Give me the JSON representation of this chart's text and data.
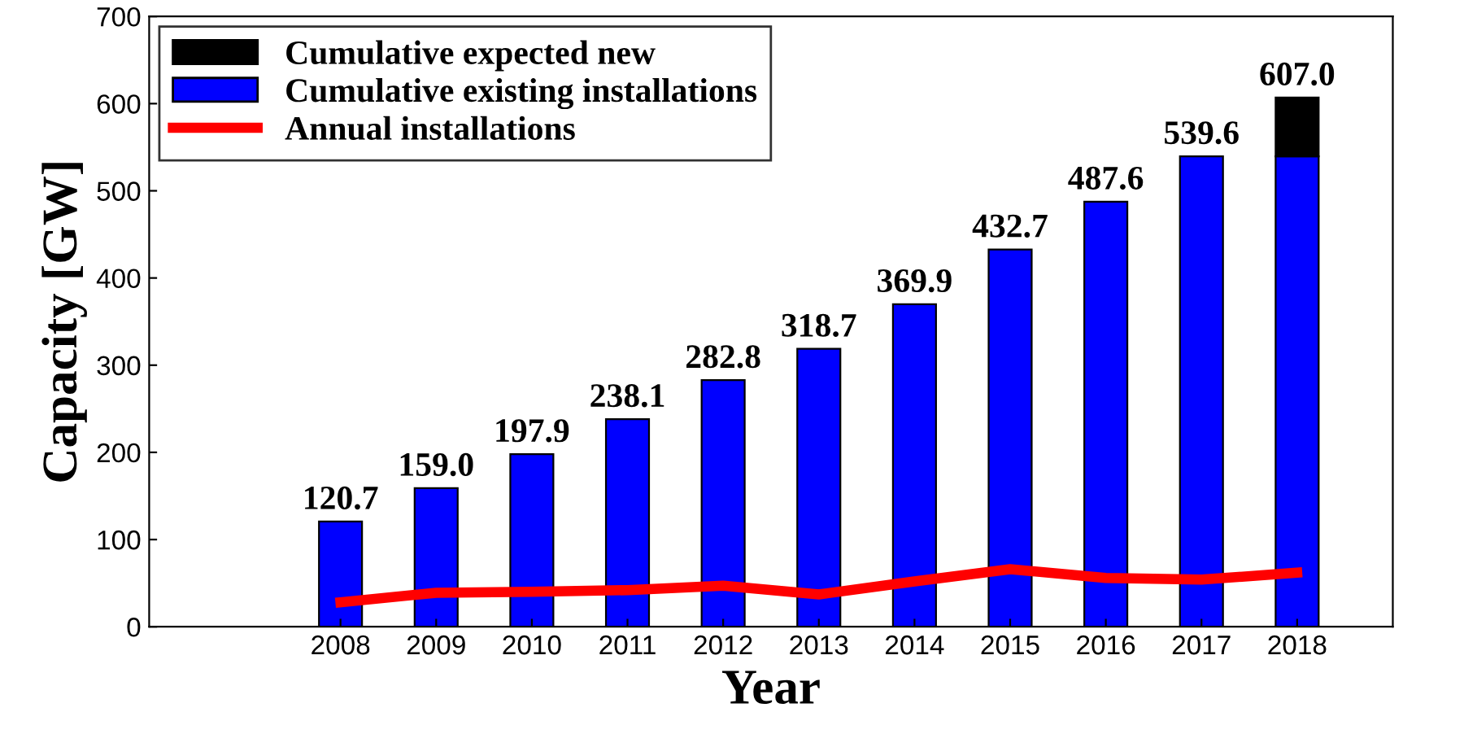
{
  "chart_data": {
    "type": "bar",
    "stacked": true,
    "xlabel": "Year",
    "ylabel": "Capacity [GW]",
    "x": [
      2008,
      2009,
      2010,
      2011,
      2012,
      2013,
      2014,
      2015,
      2016,
      2017,
      2018
    ],
    "xlim": [
      2006,
      2019
    ],
    "xticks": [
      2008,
      2009,
      2010,
      2011,
      2012,
      2013,
      2014,
      2015,
      2016,
      2017,
      2018
    ],
    "ylim": [
      0,
      700
    ],
    "yticks": [
      0,
      100,
      200,
      300,
      400,
      500,
      600,
      700
    ],
    "series": [
      {
        "name": "Cumulative existing installations",
        "color": "#0000ff",
        "values": [
          120.7,
          159.0,
          197.9,
          238.1,
          282.8,
          318.7,
          369.9,
          432.7,
          487.6,
          539.6,
          539.6
        ]
      },
      {
        "name": "Cumulative expected new",
        "color": "#000000",
        "values": [
          null,
          null,
          null,
          null,
          null,
          null,
          null,
          null,
          null,
          null,
          67.4
        ]
      },
      {
        "name": "Annual installations",
        "type": "line",
        "color": "#ff0000",
        "values": [
          28,
          39,
          40,
          42,
          47,
          37,
          52,
          66,
          56,
          54,
          62
        ]
      }
    ],
    "totals": [
      "120.7",
      "159.0",
      "197.9",
      "238.1",
      "282.8",
      "318.7",
      "369.9",
      "432.7",
      "487.6",
      "539.6",
      "607.0"
    ],
    "legend": "top left",
    "grid": false
  }
}
